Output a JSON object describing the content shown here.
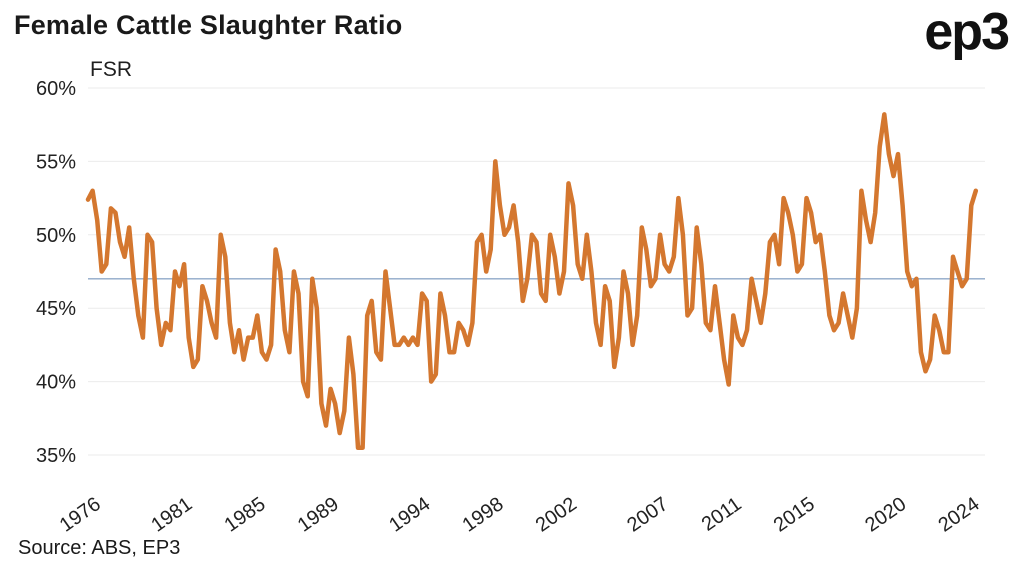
{
  "header": {
    "title": "Female Cattle Slaughter Ratio",
    "logo_text": "ep3"
  },
  "footer": {
    "source": "Source: ABS, EP3"
  },
  "chart_data": {
    "type": "line",
    "title": "Female Cattle Slaughter Ratio",
    "series_label": "FSR",
    "x_start": 1976,
    "x_end": 2025,
    "frequency": "quarterly",
    "ylim": [
      35,
      60
    ],
    "line_color": "#D4772F",
    "reference_line": {
      "value": 47,
      "color": "#8fa8c8"
    },
    "yticks": [
      {
        "value": 35,
        "label": "35%"
      },
      {
        "value": 40,
        "label": "40%"
      },
      {
        "value": 45,
        "label": "45%"
      },
      {
        "value": 50,
        "label": "50%"
      },
      {
        "value": 55,
        "label": "55%"
      },
      {
        "value": 60,
        "label": "60%"
      }
    ],
    "xticks": [
      {
        "value": 1976,
        "label": "1976"
      },
      {
        "value": 1981,
        "label": "1981"
      },
      {
        "value": 1985,
        "label": "1985"
      },
      {
        "value": 1989,
        "label": "1989"
      },
      {
        "value": 1994,
        "label": "1994"
      },
      {
        "value": 1998,
        "label": "1998"
      },
      {
        "value": 2002,
        "label": "2002"
      },
      {
        "value": 2007,
        "label": "2007"
      },
      {
        "value": 2011,
        "label": "2011"
      },
      {
        "value": 2015,
        "label": "2015"
      },
      {
        "value": 2020,
        "label": "2020"
      },
      {
        "value": 2024,
        "label": "2024"
      }
    ],
    "values": [
      52.4,
      53.0,
      51.0,
      47.5,
      48.0,
      51.8,
      51.5,
      49.5,
      48.5,
      50.5,
      47.0,
      44.5,
      43.0,
      50.0,
      49.5,
      45.0,
      42.5,
      44.0,
      43.5,
      47.5,
      46.5,
      48.0,
      43.0,
      41.0,
      41.5,
      46.5,
      45.5,
      44.0,
      43.0,
      50.0,
      48.5,
      44.0,
      42.0,
      43.5,
      41.5,
      43.0,
      43.0,
      44.5,
      42.0,
      41.5,
      42.5,
      49.0,
      47.5,
      43.5,
      42.0,
      47.5,
      46.0,
      40.0,
      39.0,
      47.0,
      45.0,
      38.5,
      37.0,
      39.5,
      38.5,
      36.5,
      38.0,
      43.0,
      40.5,
      35.5,
      35.5,
      44.5,
      45.5,
      42.0,
      41.5,
      47.5,
      45.0,
      42.5,
      42.5,
      43.0,
      42.5,
      43.0,
      42.5,
      46.0,
      45.5,
      40.0,
      40.5,
      46.0,
      44.5,
      42.0,
      42.0,
      44.0,
      43.5,
      42.5,
      44.0,
      49.5,
      50.0,
      47.5,
      49.0,
      55.0,
      52.0,
      50.0,
      50.5,
      52.0,
      49.5,
      45.5,
      47.0,
      50.0,
      49.5,
      46.0,
      45.5,
      50.0,
      48.5,
      46.0,
      47.5,
      53.5,
      52.0,
      48.0,
      47.0,
      50.0,
      47.5,
      44.0,
      42.5,
      46.5,
      45.5,
      41.0,
      43.0,
      47.5,
      46.0,
      42.5,
      44.5,
      50.5,
      49.0,
      46.5,
      47.0,
      50.0,
      48.0,
      47.5,
      48.5,
      52.5,
      50.0,
      44.5,
      45.0,
      50.5,
      48.0,
      44.0,
      43.5,
      46.5,
      44.0,
      41.5,
      39.8,
      44.5,
      43.0,
      42.5,
      43.5,
      47.0,
      45.5,
      44.0,
      46.0,
      49.5,
      50.0,
      48.0,
      52.5,
      51.5,
      50.0,
      47.5,
      48.0,
      52.5,
      51.5,
      49.5,
      50.0,
      47.5,
      44.5,
      43.5,
      44.0,
      46.0,
      44.5,
      43.0,
      45.0,
      53.0,
      51.0,
      49.5,
      51.5,
      56.0,
      58.2,
      55.5,
      54.0,
      55.5,
      52.0,
      47.5,
      46.5,
      47.0,
      42.0,
      40.7,
      41.5,
      44.5,
      43.5,
      42.0,
      42.0,
      48.5,
      47.5,
      46.5,
      47.0,
      52.0,
      53.0
    ]
  }
}
